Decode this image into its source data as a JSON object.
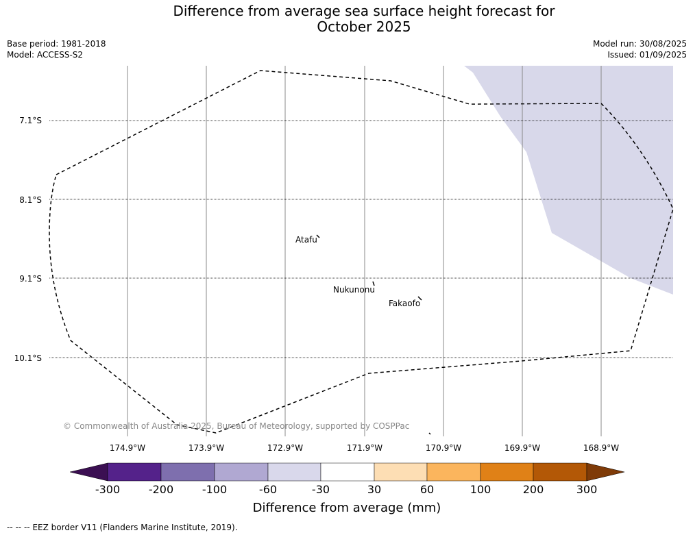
{
  "title_line1": "Difference from average sea surface height forecast for",
  "title_line2": "October 2025",
  "meta": {
    "base_period": "Base period: 1981-2018",
    "model": "Model: ACCESS-S2",
    "model_run": "Model run: 30/08/2025",
    "issued": "Issued: 01/09/2025"
  },
  "map": {
    "lat_labels": [
      "7.1°S",
      "8.1°S",
      "9.1°S",
      "10.1°S"
    ],
    "lon_labels": [
      "174.9°W",
      "173.9°W",
      "172.9°W",
      "171.9°W",
      "170.9°W",
      "169.9°W",
      "168.9°W"
    ],
    "places": [
      "Atafu",
      "Nukunonu",
      "Fakaofo"
    ],
    "copyright": "© Commonwealth of Australia 2025, Bureau of Meteorology, supported by COSPPac",
    "anomaly_fill_color": "#d8d8ea"
  },
  "colorbar": {
    "tick_labels": [
      "-300",
      "-200",
      "-100",
      "-60",
      "-30",
      "30",
      "60",
      "100",
      "200",
      "300"
    ],
    "colors": [
      "#3b0f52",
      "#54228a",
      "#7e6fae",
      "#b0a8d2",
      "#d9d8eb",
      "#ffffff",
      "#fddeb4",
      "#fbb55d",
      "#e08117",
      "#b35806",
      "#7f3b08"
    ],
    "label": "Difference from average (mm)"
  },
  "footer": {
    "legend_symbol": "-- -- --",
    "legend_text": "EEZ border V11 (Flanders Marine Institute, 2019)."
  }
}
